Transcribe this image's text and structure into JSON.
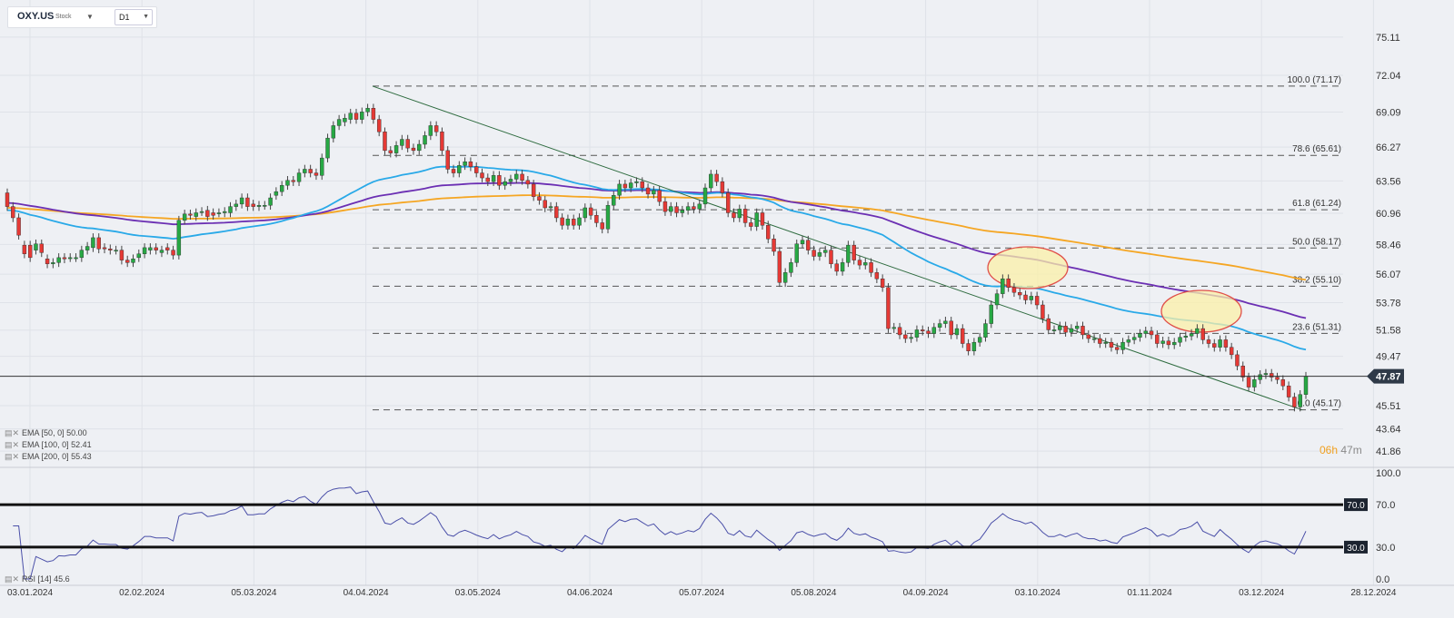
{
  "header": {
    "symbol": "OXY.US",
    "type": "Stock",
    "timeframe": "D1"
  },
  "indicators": {
    "ema50": "EMA [50, 0] 50.00",
    "ema100": "EMA [100, 0] 52.41",
    "ema200": "EMA [200, 0] 55.43",
    "rsi": "RSI [14] 45.6"
  },
  "timer": {
    "hours": "06h",
    "minutes": "47m"
  },
  "colors": {
    "up": "#27a844",
    "down": "#e53935",
    "ema50": "#29a9e8",
    "ema100": "#6b2fb3",
    "ema200": "#f5a623",
    "trendline": "#2e6b3f",
    "rsi": "#4a4fa8",
    "ellipse_fill": "#fbf0a8",
    "ellipse_stroke": "#e0504a"
  },
  "chart_data": {
    "type": "candlestick",
    "current_price": "47.87",
    "y_ticks": [
      "75.11",
      "72.04",
      "69.09",
      "66.27",
      "63.56",
      "60.96",
      "58.46",
      "56.07",
      "53.78",
      "51.58",
      "49.47",
      "45.51",
      "43.64",
      "41.86"
    ],
    "x_ticks": [
      "03.01.2024",
      "02.02.2024",
      "05.03.2024",
      "04.04.2024",
      "03.05.2024",
      "04.06.2024",
      "05.07.2024",
      "05.08.2024",
      "04.09.2024",
      "03.10.2024",
      "01.11.2024",
      "03.12.2024",
      "28.12.2024"
    ],
    "fib_levels": [
      {
        "label": "100.0 (71.17)",
        "value": 71.17
      },
      {
        "label": "78.6 (65.61)",
        "value": 65.61
      },
      {
        "label": "61.8 (61.24)",
        "value": 61.24
      },
      {
        "label": "50.0 (58.17)",
        "value": 58.17
      },
      {
        "label": "38.2 (55.10)",
        "value": 55.1
      },
      {
        "label": "23.6 (51.31)",
        "value": 51.31
      },
      {
        "label": "0.0 (45.17)",
        "value": 45.17
      }
    ],
    "trend_channel": {
      "from": {
        "date": "04.04.2024",
        "value": 71.17
      },
      "to": {
        "date": "13.12.2024",
        "value": 45.17
      }
    },
    "series": [
      {
        "name": "EMA [50, 0]",
        "last": 50.0
      },
      {
        "name": "EMA [100, 0]",
        "last": 52.41
      },
      {
        "name": "EMA [200, 0]",
        "last": 55.43
      }
    ],
    "rsi": {
      "period": 14,
      "last": 45.6,
      "levels": [
        "70.0",
        "30.0"
      ],
      "y_ticks": [
        "100.0",
        "70.0",
        "30.0",
        "0.0"
      ]
    },
    "candles": [
      [
        62.6,
        61.5
      ],
      [
        61.5,
        60.6
      ],
      [
        60.6,
        59.2
      ],
      [
        58.4,
        57.7
      ],
      [
        58.4,
        57.4
      ],
      [
        58.0,
        58.5
      ],
      [
        58.5,
        57.8
      ],
      [
        57.3,
        56.9
      ],
      [
        56.9,
        57.0
      ],
      [
        57.0,
        57.4
      ],
      [
        57.4,
        57.3
      ],
      [
        57.4,
        57.4
      ],
      [
        57.4,
        57.4
      ],
      [
        57.4,
        58.0
      ],
      [
        58.0,
        58.3
      ],
      [
        58.2,
        59.0
      ],
      [
        59.0,
        58.1
      ],
      [
        58.2,
        58.1
      ],
      [
        58.1,
        58.0
      ],
      [
        58.0,
        58.0
      ],
      [
        58.0,
        57.2
      ],
      [
        57.2,
        57.0
      ],
      [
        57.0,
        57.3
      ],
      [
        57.4,
        57.7
      ],
      [
        57.7,
        58.2
      ],
      [
        58.0,
        58.2
      ],
      [
        58.2,
        58.0
      ],
      [
        57.8,
        58.0
      ],
      [
        58.2,
        58.0
      ],
      [
        58.0,
        57.6
      ],
      [
        57.6,
        60.4
      ],
      [
        60.4,
        60.9
      ],
      [
        60.9,
        60.8
      ],
      [
        60.7,
        61.0
      ],
      [
        61.1,
        61.1
      ],
      [
        61.2,
        60.7
      ],
      [
        61.0,
        60.8
      ],
      [
        61.0,
        61.0
      ],
      [
        61.0,
        61.1
      ],
      [
        61.0,
        61.5
      ],
      [
        61.5,
        61.7
      ],
      [
        61.7,
        62.2
      ],
      [
        62.2,
        61.5
      ],
      [
        61.7,
        61.5
      ],
      [
        61.5,
        61.6
      ],
      [
        61.6,
        61.6
      ],
      [
        61.6,
        62.2
      ],
      [
        62.4,
        62.7
      ],
      [
        62.7,
        63.2
      ],
      [
        63.2,
        63.6
      ],
      [
        63.6,
        63.5
      ],
      [
        63.5,
        64.2
      ],
      [
        64.2,
        64.5
      ],
      [
        64.5,
        64.2
      ],
      [
        64.2,
        64.0
      ],
      [
        64.0,
        65.4
      ],
      [
        65.4,
        67.0
      ],
      [
        67.0,
        68.0
      ],
      [
        68.0,
        68.5
      ],
      [
        68.3,
        68.6
      ],
      [
        68.5,
        69.0
      ],
      [
        69.0,
        68.5
      ],
      [
        68.5,
        69.1
      ],
      [
        69.1,
        69.4
      ],
      [
        69.4,
        68.5
      ],
      [
        68.5,
        67.5
      ],
      [
        67.5,
        66.0
      ],
      [
        66.0,
        65.8
      ],
      [
        65.8,
        66.4
      ],
      [
        66.4,
        66.9
      ],
      [
        66.9,
        66.2
      ],
      [
        66.2,
        66.0
      ],
      [
        66.0,
        66.5
      ],
      [
        66.5,
        67.2
      ],
      [
        67.2,
        68.0
      ],
      [
        68.0,
        67.5
      ],
      [
        67.5,
        66.0
      ],
      [
        66.0,
        64.5
      ],
      [
        64.5,
        64.2
      ],
      [
        64.2,
        64.8
      ],
      [
        64.8,
        65.1
      ],
      [
        65.1,
        64.7
      ],
      [
        64.7,
        64.2
      ],
      [
        64.2,
        63.8
      ],
      [
        63.8,
        63.5
      ],
      [
        63.5,
        64.0
      ],
      [
        64.0,
        63.2
      ],
      [
        63.2,
        63.5
      ],
      [
        63.5,
        63.7
      ],
      [
        63.7,
        64.1
      ],
      [
        64.1,
        63.6
      ],
      [
        63.6,
        63.3
      ],
      [
        63.3,
        62.3
      ],
      [
        62.3,
        62.0
      ],
      [
        62.0,
        61.4
      ],
      [
        61.4,
        61.5
      ],
      [
        61.5,
        60.6
      ],
      [
        60.6,
        60.0
      ],
      [
        60.0,
        60.5
      ],
      [
        60.5,
        60.0
      ],
      [
        60.0,
        60.6
      ],
      [
        60.6,
        61.4
      ],
      [
        61.4,
        60.8
      ],
      [
        60.8,
        60.2
      ],
      [
        60.2,
        59.7
      ],
      [
        59.7,
        61.6
      ],
      [
        61.6,
        62.4
      ],
      [
        62.4,
        63.3
      ],
      [
        63.3,
        63.0
      ],
      [
        63.0,
        63.4
      ],
      [
        63.4,
        63.5
      ],
      [
        63.5,
        63.0
      ],
      [
        63.0,
        62.5
      ],
      [
        62.5,
        62.8
      ],
      [
        62.8,
        61.9
      ],
      [
        61.9,
        61.1
      ],
      [
        61.1,
        61.5
      ],
      [
        61.5,
        61.0
      ],
      [
        61.0,
        61.2
      ],
      [
        61.2,
        61.5
      ],
      [
        61.5,
        61.3
      ],
      [
        61.3,
        61.7
      ],
      [
        61.7,
        63.0
      ],
      [
        63.0,
        64.1
      ],
      [
        64.1,
        63.5
      ],
      [
        63.5,
        62.6
      ],
      [
        62.6,
        61.0
      ],
      [
        61.0,
        60.6
      ],
      [
        60.6,
        61.3
      ],
      [
        61.3,
        60.2
      ],
      [
        60.2,
        59.9
      ],
      [
        59.9,
        61.0
      ],
      [
        61.0,
        60.0
      ],
      [
        60.0,
        58.9
      ],
      [
        58.9,
        57.9
      ],
      [
        57.9,
        55.4
      ],
      [
        55.4,
        56.2
      ],
      [
        56.2,
        57.0
      ],
      [
        57.0,
        58.5
      ],
      [
        58.5,
        58.8
      ],
      [
        58.8,
        58.0
      ],
      [
        58.0,
        57.5
      ],
      [
        57.5,
        57.8
      ],
      [
        57.8,
        58.0
      ],
      [
        58.0,
        56.9
      ],
      [
        56.9,
        56.3
      ],
      [
        56.3,
        57.0
      ],
      [
        57.0,
        58.4
      ],
      [
        58.4,
        57.2
      ],
      [
        57.2,
        56.8
      ],
      [
        56.8,
        57.0
      ],
      [
        57.0,
        56.2
      ],
      [
        56.2,
        55.7
      ],
      [
        55.7,
        55.0
      ],
      [
        55.0,
        51.7
      ],
      [
        51.7,
        51.8
      ],
      [
        51.8,
        51.2
      ],
      [
        51.2,
        50.9
      ],
      [
        50.9,
        51.0
      ],
      [
        51.0,
        51.6
      ],
      [
        51.6,
        51.5
      ],
      [
        51.5,
        51.3
      ],
      [
        51.3,
        51.8
      ],
      [
        51.8,
        52.1
      ],
      [
        52.1,
        52.3
      ],
      [
        52.3,
        51.2
      ],
      [
        51.2,
        51.7
      ],
      [
        51.7,
        50.5
      ],
      [
        50.5,
        49.9
      ],
      [
        49.9,
        50.6
      ],
      [
        50.6,
        51.0
      ],
      [
        51.0,
        52.1
      ],
      [
        52.1,
        53.6
      ],
      [
        53.6,
        54.5
      ],
      [
        54.5,
        55.7
      ],
      [
        55.7,
        55.0
      ],
      [
        55.0,
        54.6
      ],
      [
        54.6,
        54.4
      ],
      [
        54.4,
        54.0
      ],
      [
        54.0,
        54.3
      ],
      [
        54.3,
        53.6
      ],
      [
        53.6,
        52.5
      ],
      [
        52.5,
        51.6
      ],
      [
        51.6,
        51.6
      ],
      [
        51.6,
        51.9
      ],
      [
        51.9,
        51.4
      ],
      [
        51.4,
        51.7
      ],
      [
        51.7,
        51.9
      ],
      [
        51.9,
        51.2
      ],
      [
        51.2,
        50.9
      ],
      [
        50.9,
        50.9
      ],
      [
        50.9,
        50.5
      ],
      [
        50.5,
        50.6
      ],
      [
        50.6,
        50.2
      ],
      [
        50.2,
        50.0
      ],
      [
        50.0,
        50.6
      ],
      [
        50.6,
        50.8
      ],
      [
        50.8,
        51.0
      ],
      [
        51.0,
        51.3
      ],
      [
        51.3,
        51.5
      ],
      [
        51.5,
        51.2
      ],
      [
        51.2,
        50.5
      ],
      [
        50.5,
        50.7
      ],
      [
        50.7,
        50.4
      ],
      [
        50.4,
        50.6
      ],
      [
        50.6,
        51.0
      ],
      [
        51.0,
        51.1
      ],
      [
        51.1,
        51.3
      ],
      [
        51.3,
        51.7
      ],
      [
        51.7,
        50.8
      ],
      [
        50.8,
        50.5
      ],
      [
        50.5,
        50.2
      ],
      [
        50.2,
        50.8
      ],
      [
        50.8,
        50.2
      ],
      [
        50.2,
        49.6
      ],
      [
        49.6,
        48.7
      ],
      [
        48.7,
        47.8
      ],
      [
        47.8,
        47.0
      ],
      [
        47.0,
        47.6
      ],
      [
        47.6,
        48.0
      ],
      [
        48.0,
        48.1
      ],
      [
        48.1,
        47.8
      ],
      [
        47.8,
        47.6
      ],
      [
        47.6,
        47.1
      ],
      [
        47.1,
        46.2
      ],
      [
        46.2,
        45.4
      ],
      [
        45.4,
        46.4
      ],
      [
        46.4,
        47.87
      ]
    ]
  }
}
